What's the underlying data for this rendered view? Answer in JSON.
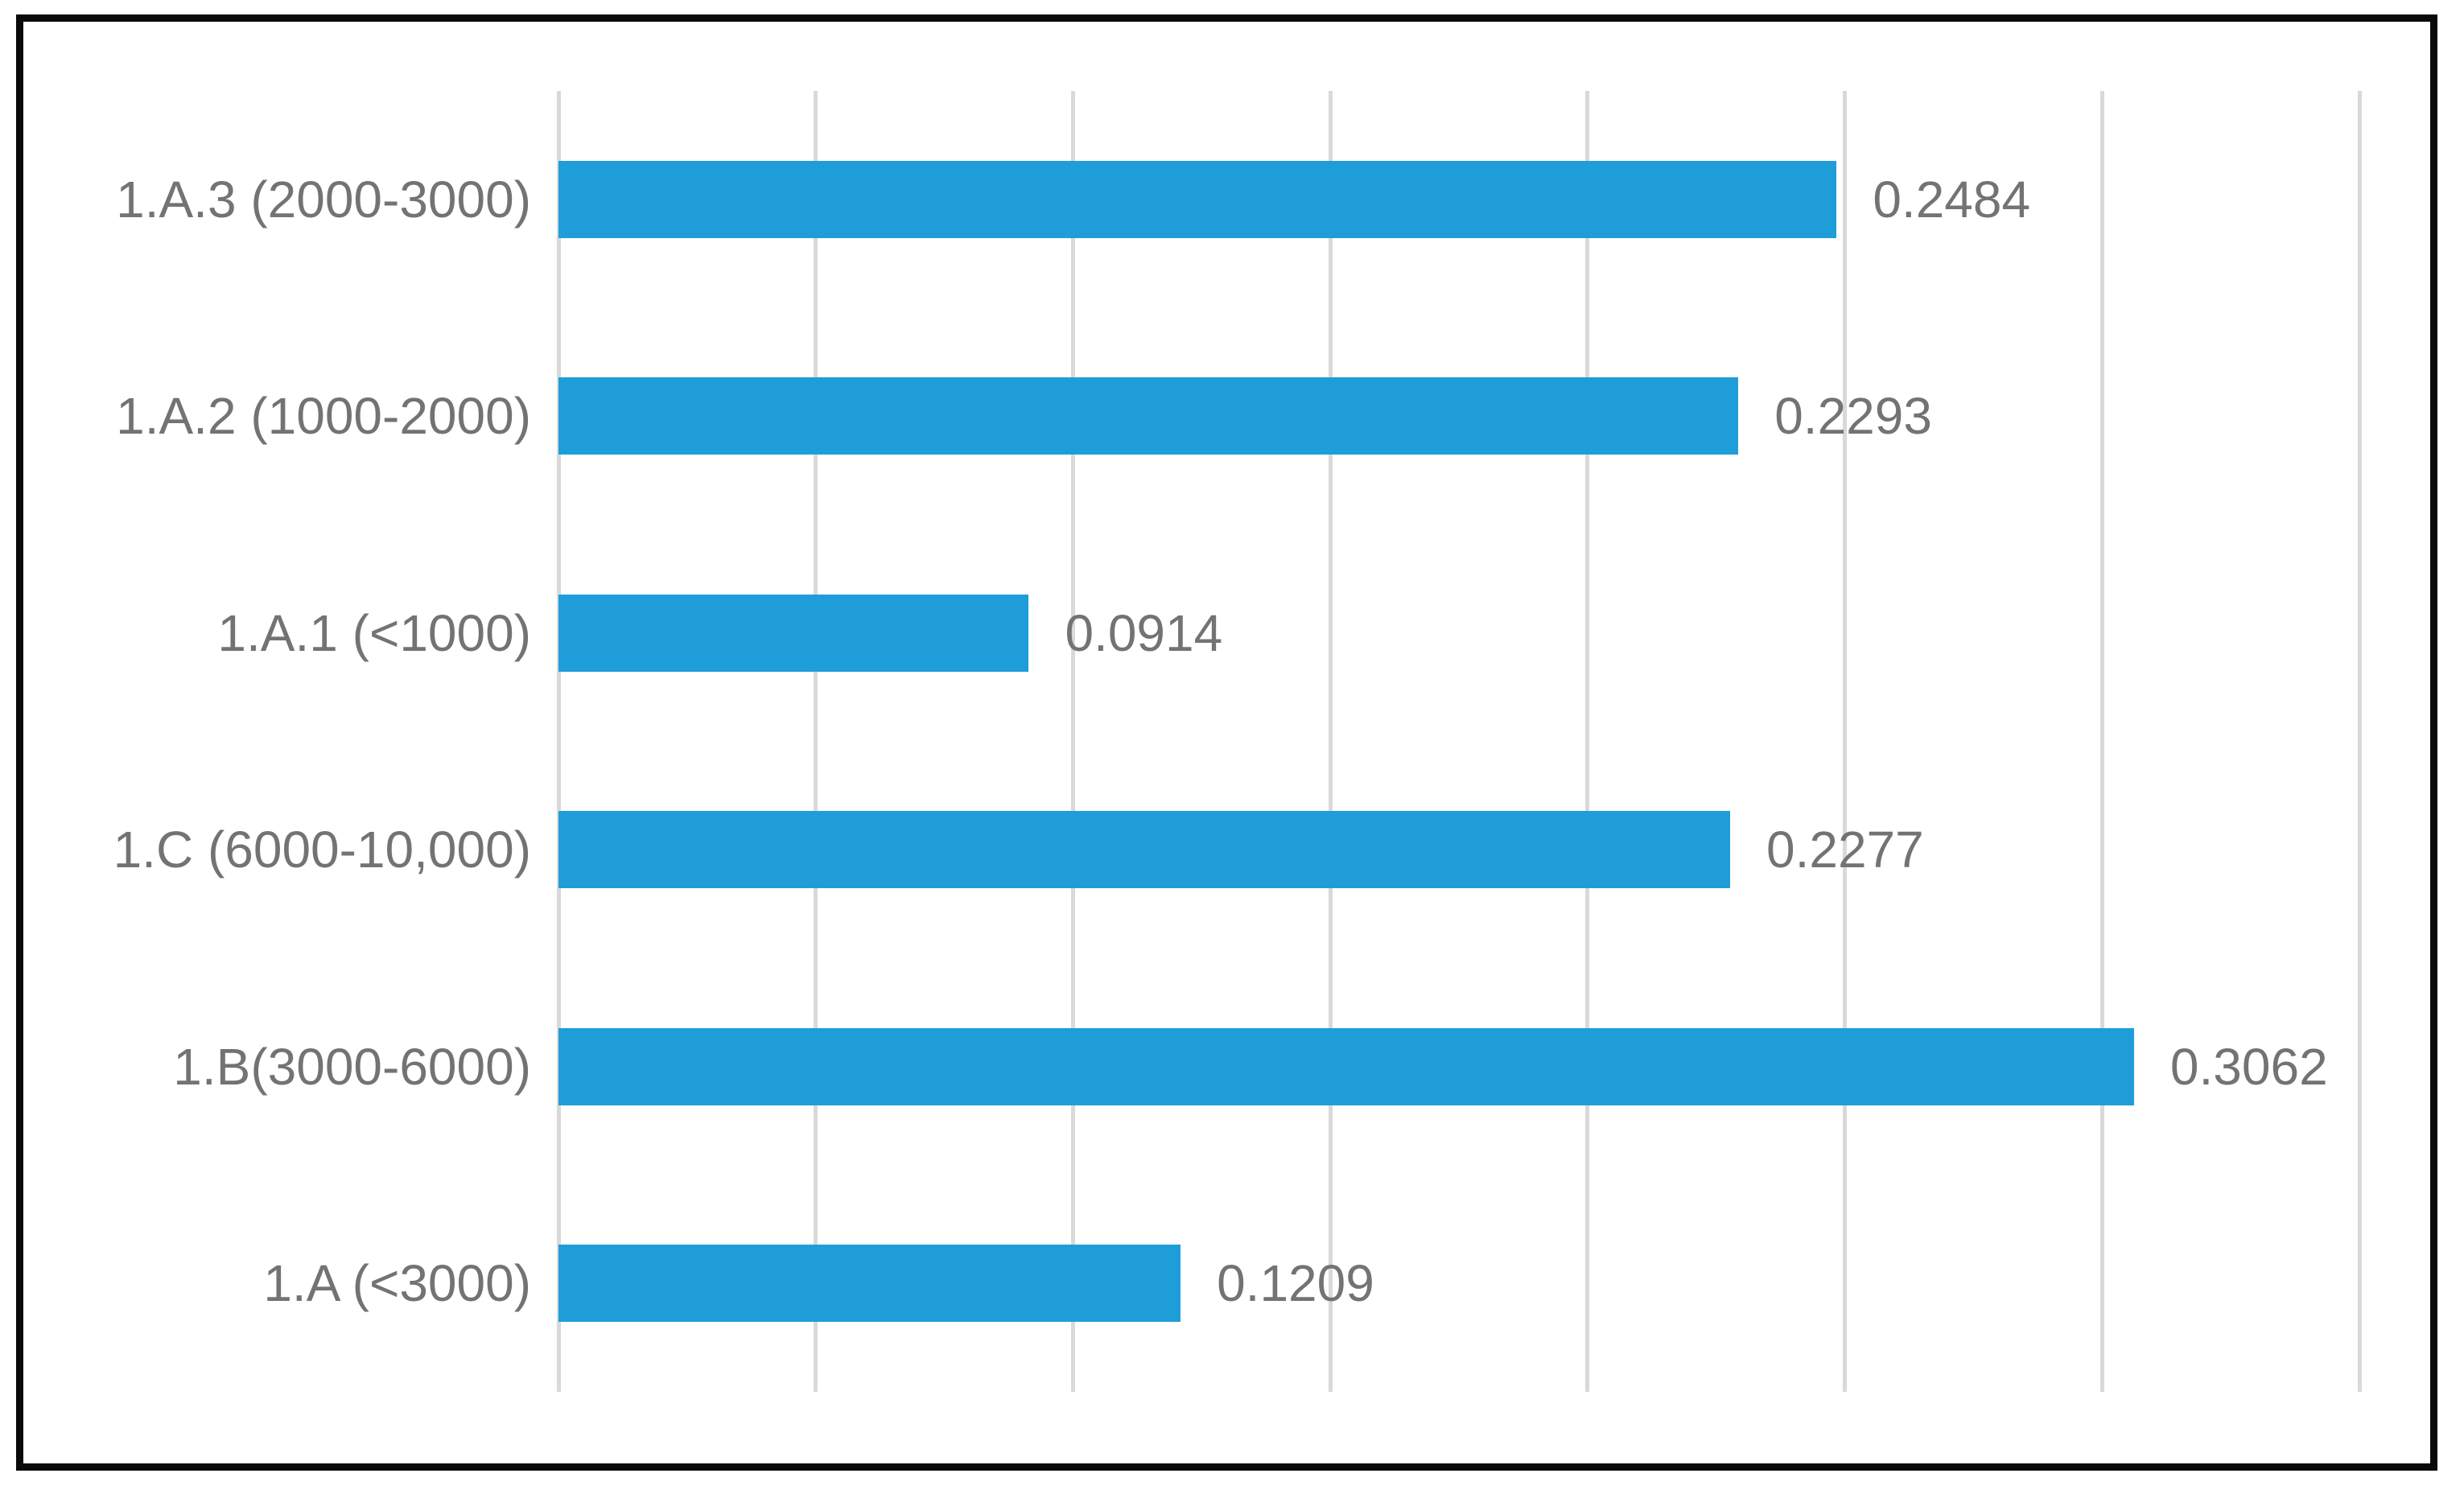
{
  "chart_data": {
    "type": "bar",
    "orientation": "horizontal",
    "title": "",
    "xlabel": "",
    "ylabel": "",
    "categories": [
      "1.A.3 (2000-3000)",
      "1.A.2 (1000-2000)",
      "1.A.1 (<1000)",
      "1.C (6000-10,000)",
      "1.B(3000-6000)",
      "1.A (<3000)"
    ],
    "values": [
      0.2484,
      0.2293,
      0.0914,
      0.2277,
      0.3062,
      0.1209
    ],
    "data_labels": [
      "0.2484",
      "0.2293",
      "0.0914",
      "0.2277",
      "0.3062",
      "0.1209"
    ],
    "xlim": [
      0,
      0.35
    ],
    "gridline_step": 0.05,
    "grid": "vertical-gridlines-only",
    "axis_tick_labels": "none",
    "legend": "none",
    "colors": {
      "bar": "#1f9dd9",
      "gridline": "#d9d9d9",
      "text": "#737373",
      "frame_border": "#0a0a0a",
      "background": "#ffffff"
    }
  }
}
